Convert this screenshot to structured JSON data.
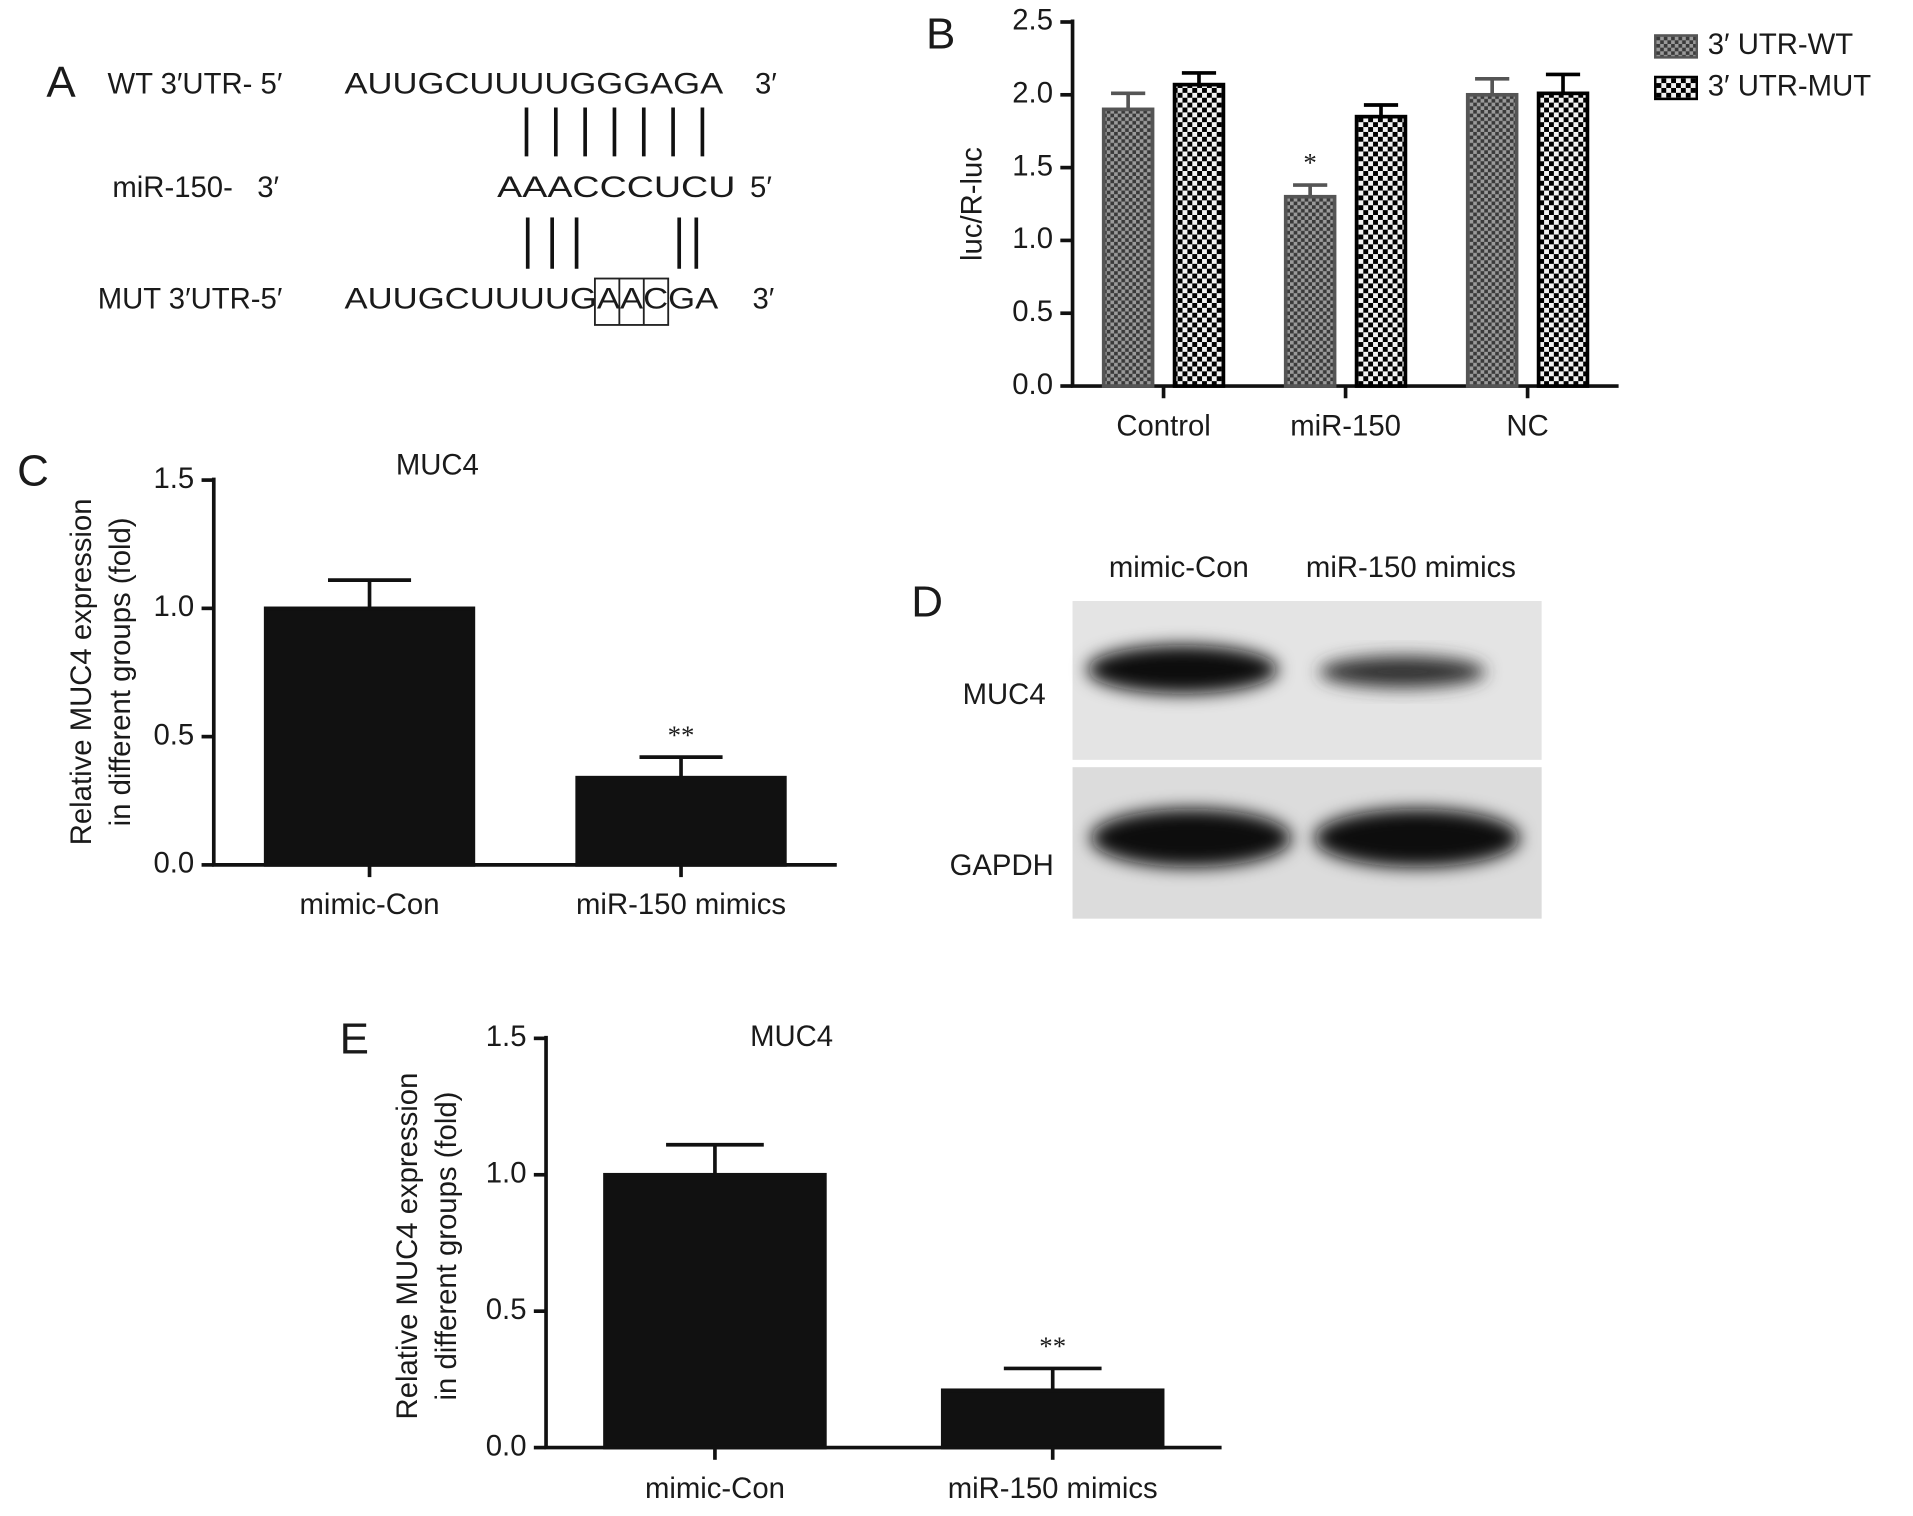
{
  "panel_a": {
    "label": "A",
    "rows": [
      {
        "label": "WT 3′UTR- 5′",
        "sequence": "AUUGCUUUUGGGAGA",
        "end": "3′"
      },
      {
        "label": "miR-150-   3′",
        "sequence": "AAACCCUCU",
        "end": "5′"
      },
      {
        "label": "MUT 3′UTR-5′",
        "sequence": "AUUGCUUUUGAACGA",
        "end": "3′"
      }
    ]
  },
  "panel_d": {
    "label": "D",
    "columns": [
      "mimic-Con",
      "miR-150 mimics"
    ],
    "rows": [
      "MUC4",
      "GAPDH"
    ]
  },
  "chart_data": [
    {
      "type": "bar",
      "panel": "B",
      "ylabel": "luc/R-luc",
      "categories": [
        "Control",
        "miR-150",
        "NC"
      ],
      "series": [
        {
          "name": "3′ UTR-WT",
          "color": "#555555",
          "pattern": "fine-check",
          "values": [
            1.9,
            1.3,
            2.0
          ],
          "errors": [
            0.11,
            0.08,
            0.11
          ],
          "significance": [
            null,
            "*",
            null
          ]
        },
        {
          "name": "3′ UTR-MUT",
          "color": "#000000",
          "pattern": "coarse-check",
          "values": [
            2.07,
            1.85,
            2.01
          ],
          "errors": [
            0.08,
            0.08,
            0.13
          ],
          "significance": [
            null,
            null,
            null
          ]
        }
      ],
      "ylim": [
        0,
        2.5
      ],
      "yticks": [
        {
          "value": 0,
          "label": "0.0"
        },
        0.5,
        {
          "value": 1,
          "label": "1.0"
        },
        1.5,
        {
          "value": 2,
          "label": "2.0"
        },
        2.5
      ],
      "legend": "right"
    },
    {
      "type": "bar",
      "panel": "C",
      "title": "MUC4",
      "ylabel": [
        "Relative MUC4 expression",
        "in different groups (fold)"
      ],
      "categories": [
        "mimic-Con",
        "miR-150 mimics"
      ],
      "values": [
        1.0,
        0.34
      ],
      "errors": [
        0.11,
        0.08
      ],
      "significance": [
        null,
        "**"
      ],
      "color": "#111111",
      "ylim": [
        0,
        1.5
      ],
      "yticks": [
        {
          "value": 0,
          "label": "0.0"
        },
        0.5,
        {
          "value": 1,
          "label": "1.0"
        },
        1.5
      ]
    },
    {
      "type": "bar",
      "panel": "E",
      "title": "MUC4",
      "ylabel": [
        "Relative MUC4 expression",
        "in different groups (fold)"
      ],
      "categories": [
        "mimic-Con",
        "miR-150 mimics"
      ],
      "values": [
        1.0,
        0.21
      ],
      "errors": [
        0.11,
        0.08
      ],
      "significance": [
        null,
        "**"
      ],
      "color": "#111111",
      "ylim": [
        0,
        1.5
      ],
      "yticks": [
        {
          "value": 0,
          "label": "0.0"
        },
        0.5,
        {
          "value": 1,
          "label": "1.0"
        },
        1.5
      ]
    }
  ]
}
